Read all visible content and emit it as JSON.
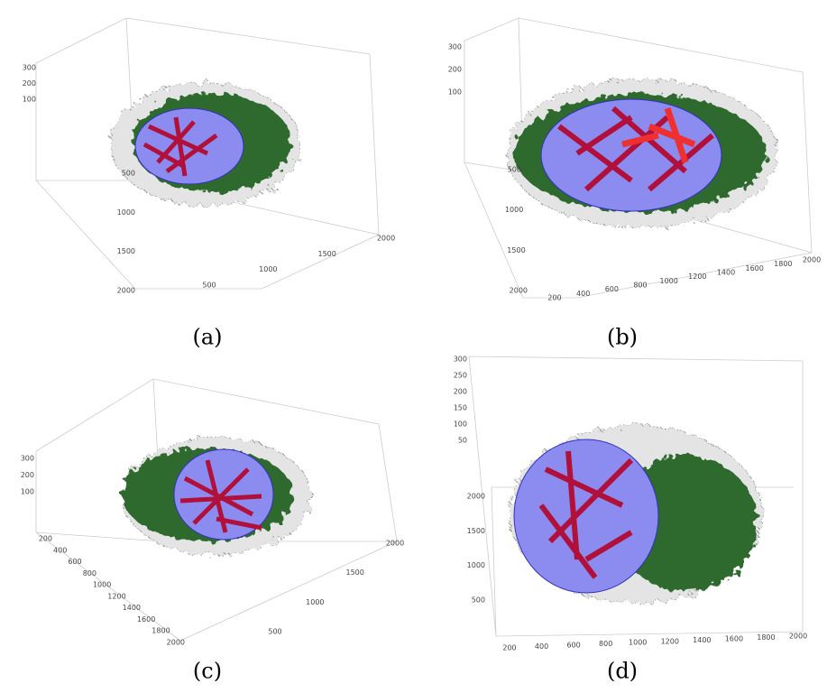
{
  "panels": [
    {
      "caption": "(a)",
      "z_ticks": [
        "300",
        "200",
        "100"
      ],
      "left_ticks": [
        "500",
        "1000",
        "1500",
        "2000"
      ],
      "right_ticks": [
        "500",
        "1000",
        "1500",
        "2000"
      ]
    },
    {
      "caption": "(b)",
      "z_ticks": [
        "300",
        "200",
        "100"
      ],
      "left_ticks": [
        "500",
        "1000",
        "1500",
        "2000"
      ],
      "right_ticks": [
        "200",
        "400",
        "600",
        "800",
        "1000",
        "1200",
        "1400",
        "1600",
        "1800",
        "2000"
      ]
    },
    {
      "caption": "(c)",
      "z_ticks": [
        "300",
        "200",
        "100"
      ],
      "left_ticks": [
        "200",
        "400",
        "600",
        "800",
        "1000",
        "1200",
        "1400",
        "1600",
        "1800",
        "2000"
      ],
      "right_ticks": [
        "500",
        "1000",
        "1500",
        "2000"
      ]
    },
    {
      "caption": "(d)",
      "z_ticks": [
        "300",
        "250",
        "200",
        "150",
        "100",
        "50"
      ],
      "left_ticks": [
        "2000",
        "1500",
        "1000",
        "500"
      ],
      "right_ticks": [
        "200",
        "400",
        "600",
        "800",
        "1000",
        "1200",
        "1400",
        "1600",
        "1800",
        "2000"
      ]
    }
  ]
}
